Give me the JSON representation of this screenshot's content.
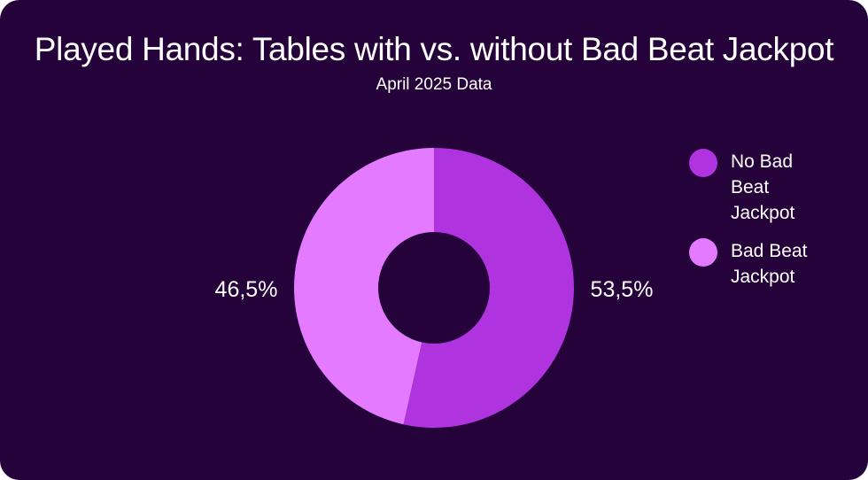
{
  "chart_data": {
    "type": "pie",
    "title": "Played Hands: Tables with vs. without Bad Beat Jackpot",
    "subtitle": "April 2025 Data",
    "donut": true,
    "legend_position": "right",
    "slices": [
      {
        "label": "No Bad Beat Jackpot",
        "value": 53.5,
        "display": "53,5%",
        "color": "#b033e0"
      },
      {
        "label": "Bad Beat Jackpot",
        "value": 46.5,
        "display": "46,5%",
        "color": "#e47aff"
      }
    ]
  },
  "legend": {
    "items": [
      {
        "line1": "No Bad",
        "line2": "Beat",
        "line3": "Jackpot",
        "color": "#b033e0"
      },
      {
        "line1": "Bad Beat",
        "line2": "Jackpot",
        "line3": "",
        "color": "#e47aff"
      }
    ]
  },
  "colors": {
    "background": "#26023a",
    "text": "#ffffff"
  }
}
